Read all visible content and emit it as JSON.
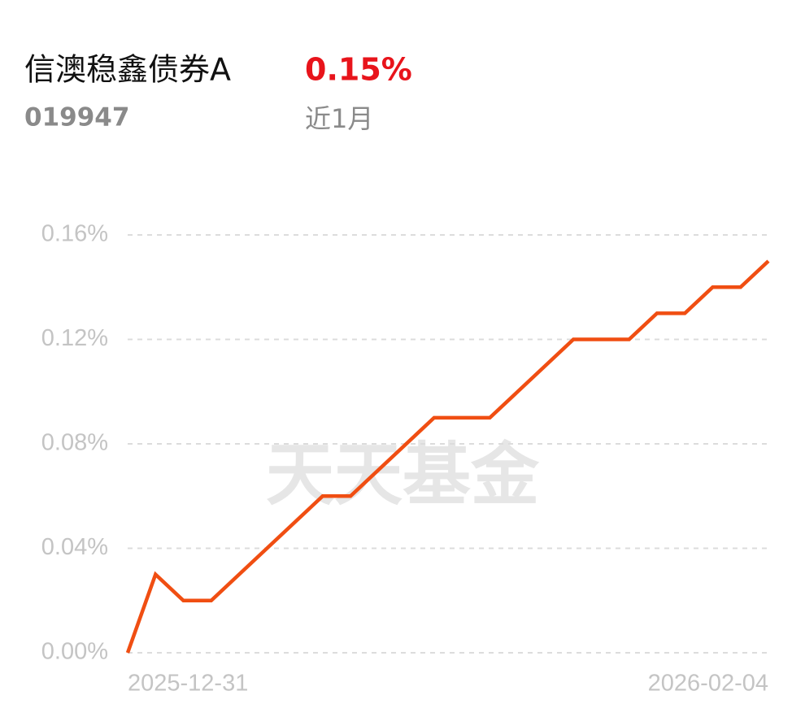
{
  "header": {
    "title": "信澳稳鑫债券A",
    "code": "019947",
    "return": "0.15%",
    "period": "近1月"
  },
  "watermark": "天天基金",
  "chart_data": {
    "type": "line",
    "categories": [
      "2025-12-31",
      null,
      null,
      null,
      null,
      null,
      null,
      null,
      null,
      null,
      null,
      null,
      null,
      null,
      null,
      null,
      null,
      null,
      null,
      null,
      null,
      null,
      null,
      "2026-02-04"
    ],
    "series": [
      {
        "color": "#f04e12",
        "values": [
          0,
          0.03,
          0.02,
          0.02,
          0.03,
          0.04,
          0.05,
          0.06,
          0.06,
          0.07,
          0.08,
          0.09,
          0.09,
          0.09,
          0.1,
          0.11,
          0.12,
          0.12,
          0.12,
          0.13,
          0.13,
          0.14,
          0.14,
          0.15
        ]
      }
    ],
    "ylim": [
      0,
      0.16
    ],
    "yticks": [
      {
        "value": 0,
        "label": "0.00%"
      },
      {
        "value": 0.04,
        "label": "0.04%"
      },
      {
        "value": 0.08,
        "label": "0.08%"
      },
      {
        "value": 0.12,
        "label": "0.12%"
      },
      {
        "value": 0.16,
        "label": "0.16%"
      }
    ],
    "grid": true
  }
}
